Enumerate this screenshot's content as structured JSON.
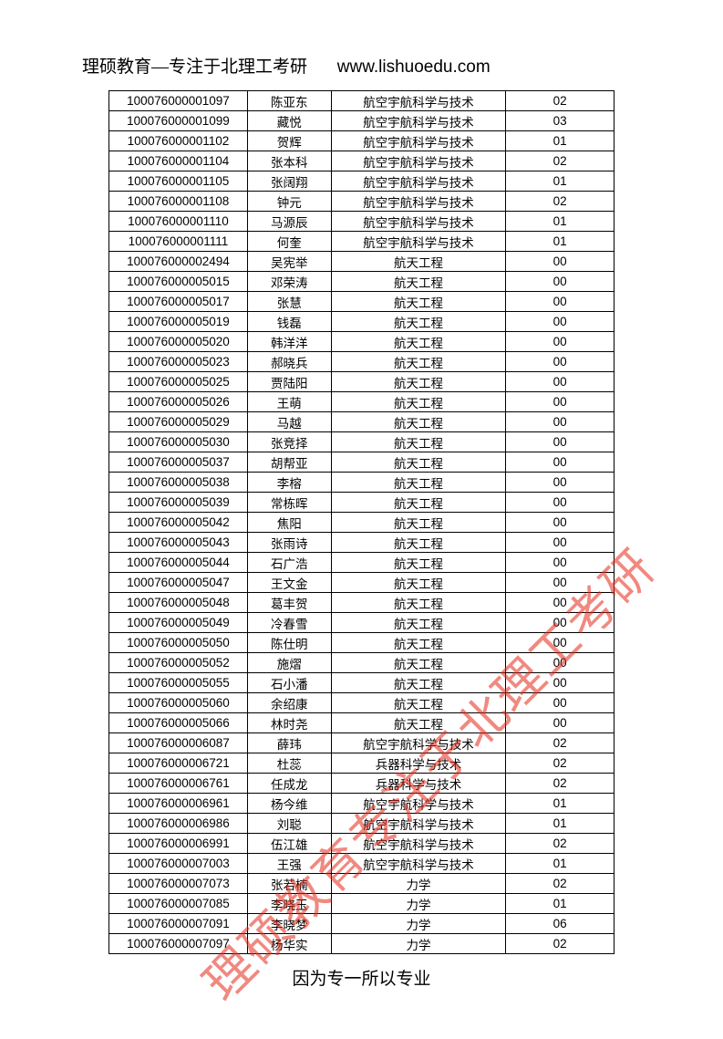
{
  "header": {
    "left": "理硕教育—专注于北理工考研",
    "right": "www.lishuoedu.com"
  },
  "footer": "因为专一所以专业",
  "watermark": "理硕教育专注于北理工考研",
  "table": {
    "rows": [
      {
        "id": "100076000001097",
        "name": "陈亚东",
        "major": "航空宇航科学与技术",
        "code": "02"
      },
      {
        "id": "100076000001099",
        "name": "藏悦",
        "major": "航空宇航科学与技术",
        "code": "03"
      },
      {
        "id": "100076000001102",
        "name": "贺辉",
        "major": "航空宇航科学与技术",
        "code": "01"
      },
      {
        "id": "100076000001104",
        "name": "张本科",
        "major": "航空宇航科学与技术",
        "code": "02"
      },
      {
        "id": "100076000001105",
        "name": "张阔翔",
        "major": "航空宇航科学与技术",
        "code": "01"
      },
      {
        "id": "100076000001108",
        "name": "钟元",
        "major": "航空宇航科学与技术",
        "code": "02"
      },
      {
        "id": "100076000001110",
        "name": "马源辰",
        "major": "航空宇航科学与技术",
        "code": "01"
      },
      {
        "id": "100076000001111",
        "name": "何奎",
        "major": "航空宇航科学与技术",
        "code": "01"
      },
      {
        "id": "100076000002494",
        "name": "吴宪举",
        "major": "航天工程",
        "code": "00"
      },
      {
        "id": "100076000005015",
        "name": "邓荣涛",
        "major": "航天工程",
        "code": "00"
      },
      {
        "id": "100076000005017",
        "name": "张慧",
        "major": "航天工程",
        "code": "00"
      },
      {
        "id": "100076000005019",
        "name": "钱磊",
        "major": "航天工程",
        "code": "00"
      },
      {
        "id": "100076000005020",
        "name": "韩洋洋",
        "major": "航天工程",
        "code": "00"
      },
      {
        "id": "100076000005023",
        "name": "郝晓兵",
        "major": "航天工程",
        "code": "00"
      },
      {
        "id": "100076000005025",
        "name": "贾陆阳",
        "major": "航天工程",
        "code": "00"
      },
      {
        "id": "100076000005026",
        "name": "王萌",
        "major": "航天工程",
        "code": "00"
      },
      {
        "id": "100076000005029",
        "name": "马越",
        "major": "航天工程",
        "code": "00"
      },
      {
        "id": "100076000005030",
        "name": "张竞择",
        "major": "航天工程",
        "code": "00"
      },
      {
        "id": "100076000005037",
        "name": "胡帮亚",
        "major": "航天工程",
        "code": "00"
      },
      {
        "id": "100076000005038",
        "name": "李榕",
        "major": "航天工程",
        "code": "00"
      },
      {
        "id": "100076000005039",
        "name": "常栋晖",
        "major": "航天工程",
        "code": "00"
      },
      {
        "id": "100076000005042",
        "name": "焦阳",
        "major": "航天工程",
        "code": "00"
      },
      {
        "id": "100076000005043",
        "name": "张雨诗",
        "major": "航天工程",
        "code": "00"
      },
      {
        "id": "100076000005044",
        "name": "石广浩",
        "major": "航天工程",
        "code": "00"
      },
      {
        "id": "100076000005047",
        "name": "王文金",
        "major": "航天工程",
        "code": "00"
      },
      {
        "id": "100076000005048",
        "name": "葛丰贺",
        "major": "航天工程",
        "code": "00"
      },
      {
        "id": "100076000005049",
        "name": "冷春雪",
        "major": "航天工程",
        "code": "00"
      },
      {
        "id": "100076000005050",
        "name": "陈仕明",
        "major": "航天工程",
        "code": "00"
      },
      {
        "id": "100076000005052",
        "name": "施熠",
        "major": "航天工程",
        "code": "00"
      },
      {
        "id": "100076000005055",
        "name": "石小潘",
        "major": "航天工程",
        "code": "00"
      },
      {
        "id": "100076000005060",
        "name": "余绍康",
        "major": "航天工程",
        "code": "00"
      },
      {
        "id": "100076000005066",
        "name": "林时尧",
        "major": "航天工程",
        "code": "00"
      },
      {
        "id": "100076000006087",
        "name": "薛玮",
        "major": "航空宇航科学与技术",
        "code": "02"
      },
      {
        "id": "100076000006721",
        "name": "杜蕊",
        "major": "兵器科学与技术",
        "code": "02"
      },
      {
        "id": "100076000006761",
        "name": "任成龙",
        "major": "兵器科学与技术",
        "code": "02"
      },
      {
        "id": "100076000006961",
        "name": "杨今维",
        "major": "航空宇航科学与技术",
        "code": "01"
      },
      {
        "id": "100076000006986",
        "name": "刘聪",
        "major": "航空宇航科学与技术",
        "code": "01"
      },
      {
        "id": "100076000006991",
        "name": "伍江雄",
        "major": "航空宇航科学与技术",
        "code": "02"
      },
      {
        "id": "100076000007003",
        "name": "王强",
        "major": "航空宇航科学与技术",
        "code": "01"
      },
      {
        "id": "100076000007073",
        "name": "张若楠",
        "major": "力学",
        "code": "02"
      },
      {
        "id": "100076000007085",
        "name": "李晓玉",
        "major": "力学",
        "code": "01"
      },
      {
        "id": "100076000007091",
        "name": "李晓梦",
        "major": "力学",
        "code": "06"
      },
      {
        "id": "100076000007097",
        "name": "杨华实",
        "major": "力学",
        "code": "02"
      }
    ]
  }
}
